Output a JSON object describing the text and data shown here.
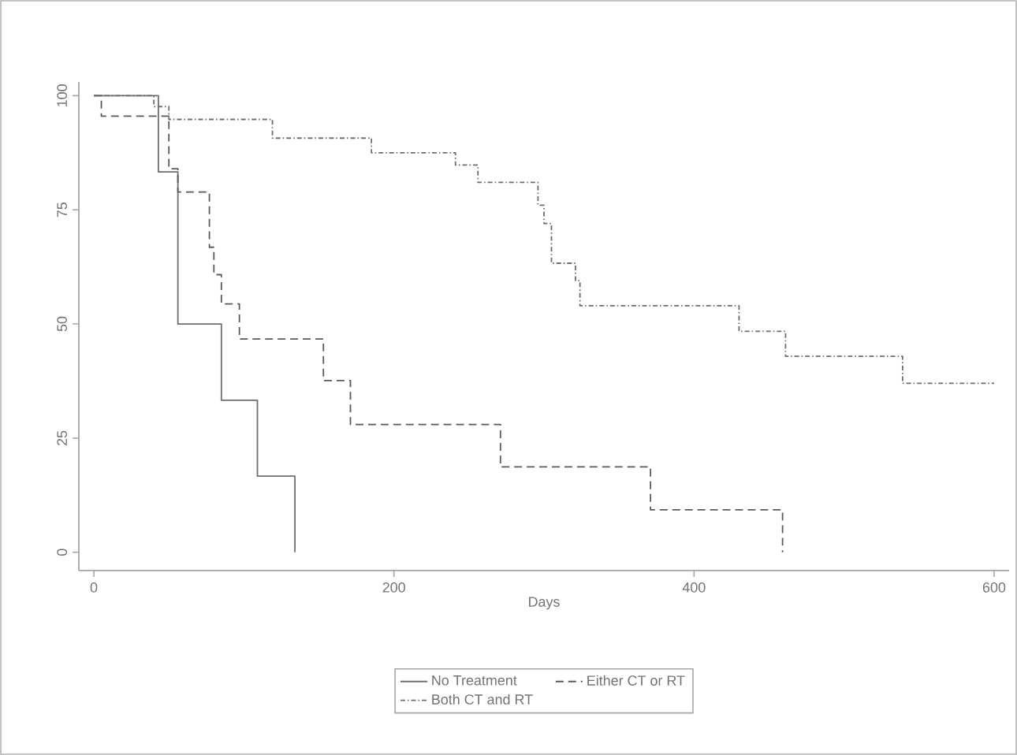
{
  "chart_data": {
    "type": "step",
    "xlabel": "Days",
    "xlim": [
      -10,
      610
    ],
    "ylim": [
      -4,
      103
    ],
    "xticks": [
      0,
      200,
      400,
      600
    ],
    "yticks": [
      0,
      25,
      50,
      75,
      100
    ],
    "grid": false,
    "legend": "bottom",
    "marker": "none",
    "series": [
      {
        "name": "No Treatment",
        "color": "#6e6e6e",
        "line_style": "solid",
        "x": [
          0,
          43,
          56,
          85,
          109,
          134
        ],
        "values": [
          100,
          83.3,
          50,
          33.3,
          16.7,
          0
        ]
      },
      {
        "name": "Either CT or RT",
        "color": "#5a5a5a",
        "line_style": "dashed",
        "x": [
          0,
          5,
          50,
          56,
          77,
          80,
          85,
          97,
          153,
          171,
          271,
          371,
          459
        ],
        "values": [
          100,
          95.5,
          84,
          78.9,
          66.8,
          60.8,
          54.4,
          46.7,
          37.6,
          28,
          18.7,
          9.3,
          0
        ]
      },
      {
        "name": "Both CT and RT",
        "color": "#6e6e6e",
        "line_style": "dashdot",
        "x": [
          0,
          40,
          50,
          119,
          185,
          241,
          256,
          296,
          300,
          305,
          321,
          324,
          430,
          461,
          539,
          600
        ],
        "values": [
          100,
          97.6,
          94.8,
          90.7,
          87.5,
          84.8,
          81,
          76,
          72,
          63.3,
          59.5,
          54,
          48.4,
          42.9,
          37,
          37
        ]
      }
    ]
  }
}
